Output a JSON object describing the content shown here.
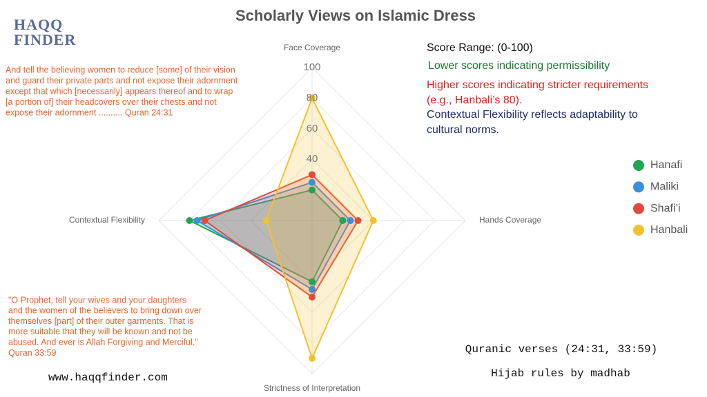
{
  "chart_data": {
    "type": "radar",
    "title": "Scholarly Views on Islamic Dress",
    "categories": [
      "Face Coverage",
      "Hands Coverage",
      "Strictness of Interpretation",
      "Contextual Flexibility"
    ],
    "rlim": [
      0,
      100
    ],
    "rticks": [
      40,
      60,
      80,
      100
    ],
    "grid": true,
    "legend": "right",
    "series": [
      {
        "name": "Hanafi",
        "color": "#22a455",
        "values": [
          20,
          20,
          40,
          80
        ]
      },
      {
        "name": "Maliki",
        "color": "#3b8fd9",
        "values": [
          25,
          25,
          45,
          75
        ]
      },
      {
        "name": "Shafi’i",
        "color": "#e24a3f",
        "values": [
          30,
          30,
          50,
          70
        ]
      },
      {
        "name": "Hanbali",
        "color": "#f2c12e",
        "values": [
          80,
          40,
          90,
          30
        ]
      }
    ],
    "logo": [
      "HAQQ",
      "FINDER"
    ],
    "quote_1": [
      "And tell the believing women to reduce [some] of their vision",
      "and guard their private parts and not expose their adornment",
      "except that which [necessarily] appears thereof and to wrap",
      "[a portion of] their headcovers over their chests and not",
      " expose their adornment .......... Quran 24:31"
    ],
    "quote_2": [
      "\"O Prophet, tell your wives and your daughters",
      "and the women of the believers to bring down over",
      " themselves [part] of their outer garments. That is",
      "more suitable that they will be known and not be",
      "abused. And ever is Allah Forgiving and Merciful.\"",
      "Quran 33:59"
    ],
    "score_range": "Score Range: (0-100)",
    "lower_note": "Lower scores indicating permissibility",
    "higher_note": [
      "Higher scores indicating stricter requirements",
      "(e.g., Hanbali’s 80)."
    ],
    "flex_note": [
      "Contextual Flexibility reflects adaptability to",
      "cultural norms."
    ],
    "website": "www.haqqfinder.com",
    "verses": "Quranic verses (24:31, 33:59)",
    "subtitle": "Hijab rules by madhab"
  }
}
